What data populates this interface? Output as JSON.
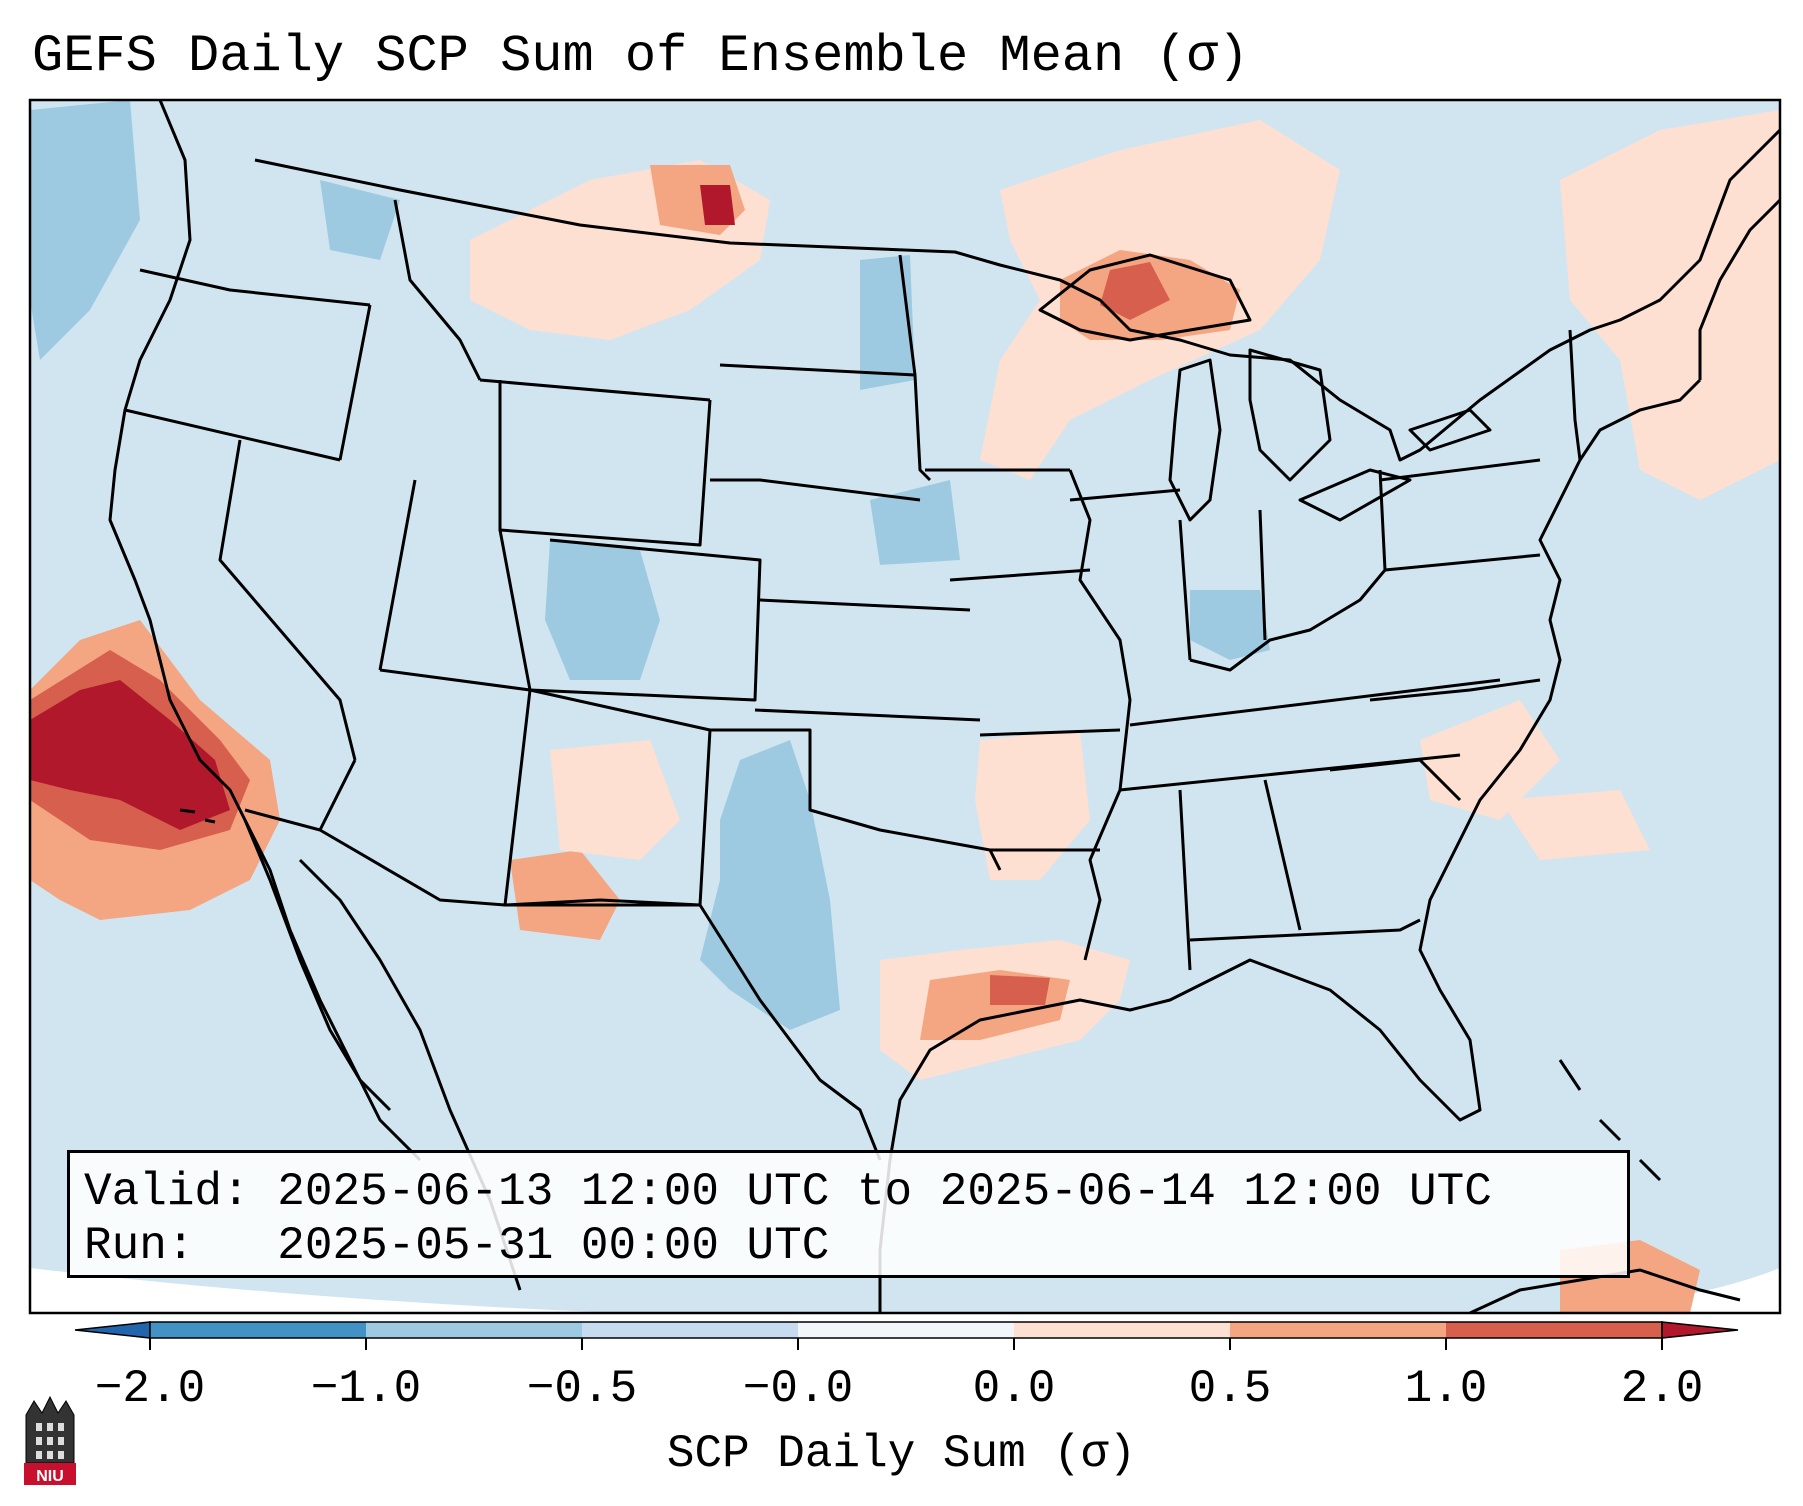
{
  "title": "GEFS Daily SCP Sum of Ensemble Mean (σ)",
  "info": {
    "valid_label": "Valid:",
    "valid_value": "2025-06-13 12:00 UTC to 2025-06-14 12:00 UTC",
    "run_label": "Run:",
    "run_value": "2025-05-31 00:00 UTC"
  },
  "colorbar": {
    "label": "SCP Daily Sum (σ)",
    "ticks": [
      "−2.0",
      "−1.0",
      "−0.5",
      "−0.0",
      "0.0",
      "0.5",
      "1.0",
      "2.0"
    ],
    "colors": [
      "#4292c6",
      "#9ecae1",
      "#c6dbef",
      "#e8f0f8",
      "#fde0d2",
      "#f4a582",
      "#d6604d",
      "#b2182b"
    ],
    "extend": "both"
  },
  "map": {
    "projection": "Lambert Conformal",
    "region": "Contiguous United States",
    "background_color": "#d1e5f0",
    "highlights": [
      {
        "area": "Pacific off southern California",
        "level": "strong positive"
      },
      {
        "area": "Upper Michigan / Lake Superior",
        "level": "positive"
      },
      {
        "area": "Western North Dakota / Montana border",
        "level": "positive"
      },
      {
        "area": "Upper Texas coast / Louisiana",
        "level": "positive"
      },
      {
        "area": "West Texas",
        "level": "negative"
      },
      {
        "area": "Colorado / Utah",
        "level": "negative"
      }
    ]
  },
  "logo": {
    "text": "NIU"
  }
}
